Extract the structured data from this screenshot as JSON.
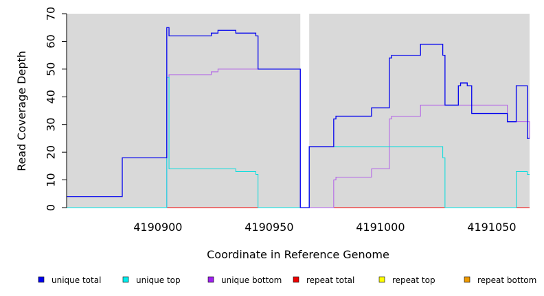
{
  "chart_data": {
    "type": "line",
    "title": "",
    "xlabel": "Coordinate in Reference Genome",
    "ylabel": "Read Coverage Depth",
    "xlim": [
      4190859,
      4191067
    ],
    "ylim": [
      0,
      70
    ],
    "x_ticks": [
      4190900,
      4190950,
      4191000,
      4191050
    ],
    "y_ticks": [
      0,
      10,
      20,
      30,
      40,
      50,
      60,
      70
    ],
    "x_tick_labels": [
      "4190900",
      "4190950",
      "4191000",
      "4191050"
    ],
    "y_tick_labels": [
      "0",
      "10",
      "20",
      "30",
      "40",
      "50",
      "60",
      "70"
    ],
    "shaded_regions": [
      [
        4190859,
        4190964
      ],
      [
        4190968,
        4191067
      ]
    ],
    "background_color": "#d9d9d9",
    "series": [
      {
        "name": "unique total",
        "color": "#0000ee",
        "steps": [
          [
            4190859,
            4
          ],
          [
            4190884,
            18
          ],
          [
            4190904,
            65
          ],
          [
            4190905,
            62
          ],
          [
            4190924,
            63
          ],
          [
            4190927,
            64
          ],
          [
            4190935,
            63
          ],
          [
            4190944,
            62
          ],
          [
            4190945,
            50
          ],
          [
            4190964,
            0
          ],
          [
            4190968,
            22
          ],
          [
            4190979,
            32
          ],
          [
            4190980,
            33
          ],
          [
            4190996,
            36
          ],
          [
            4191004,
            54
          ],
          [
            4191005,
            55
          ],
          [
            4191018,
            59
          ],
          [
            4191028,
            55
          ],
          [
            4191029,
            37
          ],
          [
            4191035,
            44
          ],
          [
            4191036,
            45
          ],
          [
            4191039,
            44
          ],
          [
            4191041,
            34
          ],
          [
            4191057,
            31
          ],
          [
            4191061,
            44
          ],
          [
            4191066,
            25
          ],
          [
            4191067,
            25
          ]
        ]
      },
      {
        "name": "unique top",
        "color": "#00dddd",
        "steps": [
          [
            4190859,
            0
          ],
          [
            4190904,
            47
          ],
          [
            4190905,
            14
          ],
          [
            4190935,
            13
          ],
          [
            4190944,
            12
          ],
          [
            4190945,
            0
          ],
          [
            4190964,
            0
          ],
          [
            4190968,
            22
          ],
          [
            4191028,
            18
          ],
          [
            4191029,
            0
          ],
          [
            4191061,
            13
          ],
          [
            4191066,
            12
          ],
          [
            4191067,
            12
          ]
        ]
      },
      {
        "name": "unique bottom",
        "color": "#b05ce8",
        "steps": [
          [
            4190859,
            0
          ],
          [
            4190904,
            47
          ],
          [
            4190905,
            48
          ],
          [
            4190924,
            49
          ],
          [
            4190927,
            50
          ],
          [
            4190945,
            50
          ],
          [
            4190964,
            0
          ],
          [
            4190968,
            0
          ],
          [
            4190979,
            10
          ],
          [
            4190980,
            11
          ],
          [
            4190996,
            14
          ],
          [
            4191004,
            32
          ],
          [
            4191005,
            33
          ],
          [
            4191018,
            37
          ],
          [
            4191057,
            31
          ],
          [
            4191066,
            31
          ],
          [
            4191067,
            25
          ]
        ]
      },
      {
        "name": "repeat total",
        "color": "#ee0000",
        "steps": [
          [
            4190859,
            0
          ],
          [
            4191067,
            0
          ]
        ]
      },
      {
        "name": "repeat top",
        "color": "#eeee00",
        "steps": [
          [
            4190859,
            0
          ],
          [
            4191067,
            0
          ]
        ]
      },
      {
        "name": "repeat bottom",
        "color": "#ee9a00",
        "steps": [
          [
            4190859,
            0
          ],
          [
            4191067,
            0
          ]
        ]
      }
    ],
    "legend": {
      "position": "bottom",
      "entries": [
        {
          "label": "unique total",
          "color": "#0000ee"
        },
        {
          "label": "unique top",
          "color": "#00eeee"
        },
        {
          "label": "unique bottom",
          "color": "#a020f0"
        },
        {
          "label": "repeat total",
          "color": "#ee0000"
        },
        {
          "label": "repeat top",
          "color": "#ffff00"
        },
        {
          "label": "repeat bottom",
          "color": "#ee9a00"
        }
      ]
    }
  }
}
